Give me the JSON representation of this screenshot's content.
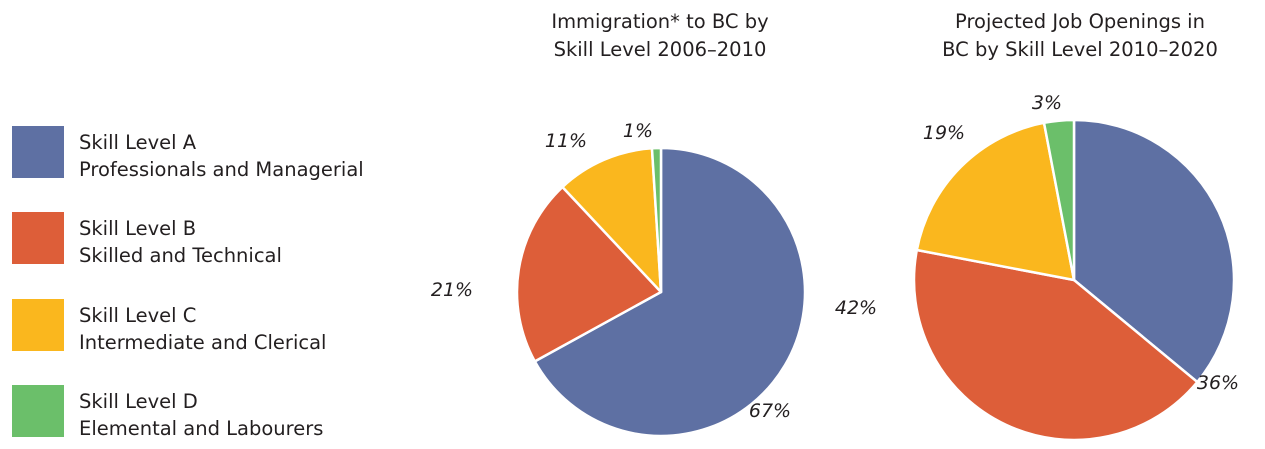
{
  "legend": {
    "items": [
      {
        "line1": "Skill Level A",
        "line2": "Professionals and Managerial",
        "color": "#5e70a3"
      },
      {
        "line1": "Skill Level B",
        "line2": "Skilled and Technical",
        "color": "#dd5e39"
      },
      {
        "line1": "Skill Level C",
        "line2": "Intermediate and Clerical",
        "color": "#fab71e"
      },
      {
        "line1": "Skill Level D",
        "line2": "Elemental and Labourers",
        "color": "#6bbf6a"
      }
    ]
  },
  "chart_data": [
    {
      "type": "pie",
      "title_line1": "Immigration* to BC by",
      "title_line2": "Skill Level 2006–2010",
      "categories": [
        "Skill Level A",
        "Skill Level B",
        "Skill Level C",
        "Skill Level D"
      ],
      "values": [
        67,
        21,
        11,
        1
      ],
      "labels": [
        "67%",
        "21%",
        "11%",
        "1%"
      ],
      "colors": [
        "#5e70a3",
        "#dd5e39",
        "#fab71e",
        "#6bbf6a"
      ]
    },
    {
      "type": "pie",
      "title_line1": "Projected Job Openings in",
      "title_line2": "BC by Skill Level 2010–2020",
      "categories": [
        "Skill Level A",
        "Skill Level B",
        "Skill Level C",
        "Skill Level D"
      ],
      "values": [
        36,
        42,
        19,
        3
      ],
      "labels": [
        "36%",
        "42%",
        "19%",
        "3%"
      ],
      "colors": [
        "#5e70a3",
        "#dd5e39",
        "#fab71e",
        "#6bbf6a"
      ]
    }
  ]
}
